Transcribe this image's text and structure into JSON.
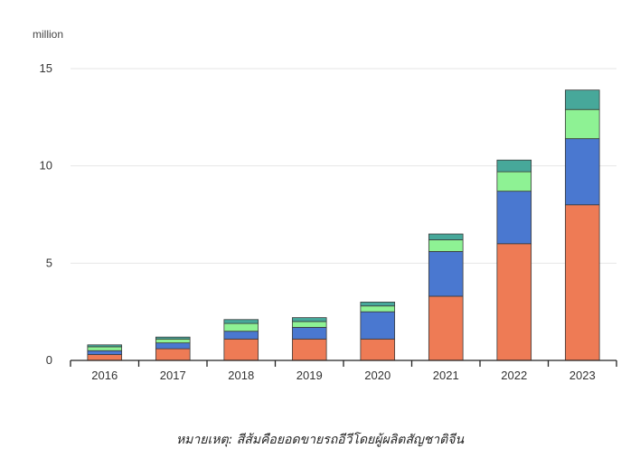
{
  "chart_data": {
    "type": "bar",
    "stacked": true,
    "unit_label": "million",
    "categories": [
      "2016",
      "2017",
      "2018",
      "2019",
      "2020",
      "2021",
      "2022",
      "2023"
    ],
    "ylim": [
      0,
      15
    ],
    "yticks": [
      "0",
      "5",
      "10",
      "15"
    ],
    "grid": true,
    "series": [
      {
        "color": "#ee7b55",
        "values": [
          0.3,
          0.6,
          1.1,
          1.1,
          1.1,
          3.3,
          6.0,
          8.0
        ]
      },
      {
        "color": "#4a78d0",
        "values": [
          0.2,
          0.3,
          0.4,
          0.6,
          1.4,
          2.3,
          2.7,
          3.4
        ]
      },
      {
        "color": "#8ef294",
        "values": [
          0.2,
          0.2,
          0.4,
          0.3,
          0.3,
          0.6,
          1.0,
          1.5
        ]
      },
      {
        "color": "#47a89a",
        "values": [
          0.1,
          0.1,
          0.2,
          0.2,
          0.2,
          0.3,
          0.6,
          1.0
        ]
      }
    ]
  },
  "note": "หมายเหตุ: สีส้มคือยอดขายรถอีวีโดยผู้ผลิตสัญชาติจีน"
}
